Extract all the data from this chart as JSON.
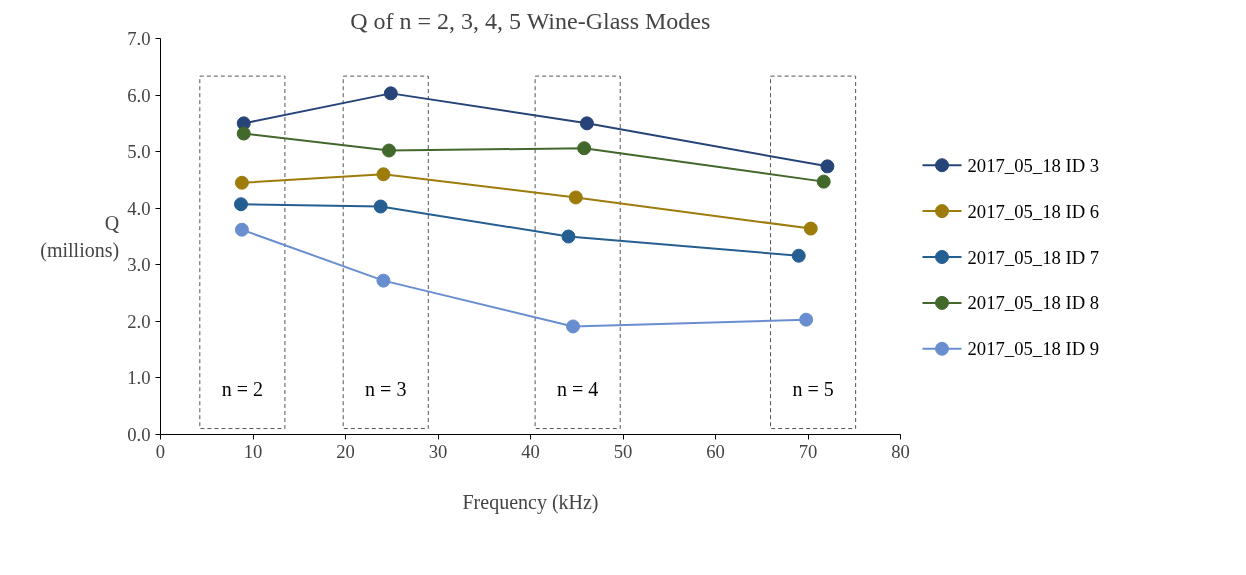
{
  "chart_data": {
    "type": "line",
    "title": "Q of n = 2, 3, 4, 5 Wine-Glass Modes",
    "xlabel": "Frequency (kHz)",
    "ylabel": "Q\n(millions)",
    "xlim": [
      0,
      80
    ],
    "xticks": [
      0,
      10,
      20,
      30,
      40,
      50,
      60,
      70,
      80
    ],
    "ylim": [
      0,
      7
    ],
    "yticks": [
      {
        "value": 0,
        "label": "0.0"
      },
      {
        "value": 1,
        "label": "1.0"
      },
      {
        "value": 2,
        "label": "2.0"
      },
      {
        "value": 3,
        "label": "3.0"
      },
      {
        "value": 4,
        "label": "4.0"
      },
      {
        "value": 5,
        "label": "5.0"
      },
      {
        "value": 6,
        "label": "6.0"
      },
      {
        "value": 7,
        "label": "7.0"
      }
    ],
    "grid": false,
    "legend": "right",
    "marker": "circle",
    "line_style": "solid",
    "series": [
      {
        "name": "2017_05_18 ID 3",
        "color": "#264478",
        "x": [
          9.0,
          24.9,
          46.1,
          72.1
        ],
        "values": [
          5.5,
          6.03,
          5.5,
          4.74
        ]
      },
      {
        "name": "2017_05_18 ID 6",
        "color": "#9e7c0c",
        "x": [
          8.8,
          24.1,
          44.9,
          70.3
        ],
        "values": [
          4.45,
          4.6,
          4.19,
          3.64
        ]
      },
      {
        "name": "2017_05_18 ID 7",
        "color": "#255e91",
        "x": [
          8.7,
          23.8,
          44.1,
          69.0
        ],
        "values": [
          4.07,
          4.03,
          3.5,
          3.16
        ]
      },
      {
        "name": "2017_05_18 ID 8",
        "color": "#43682b",
        "x": [
          9.0,
          24.7,
          45.8,
          71.7
        ],
        "values": [
          5.32,
          5.02,
          5.06,
          4.47
        ]
      },
      {
        "name": "2017_05_18 ID 9",
        "color": "#698ed0",
        "x": [
          8.8,
          24.1,
          44.6,
          69.8
        ],
        "values": [
          3.62,
          2.72,
          1.91,
          2.03
        ]
      }
    ],
    "annotations": [
      "n = 2",
      "n = 3",
      "n = 4",
      "n = 5"
    ]
  }
}
